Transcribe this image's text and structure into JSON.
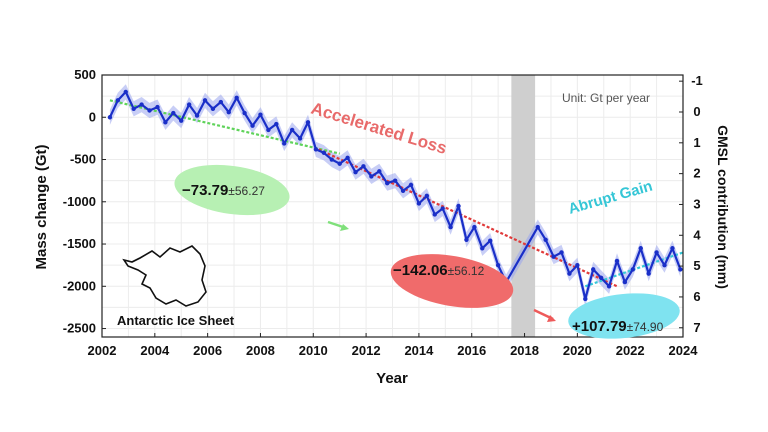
{
  "chart_data": {
    "type": "line",
    "xlabel": "Year",
    "ylabel": "Mass change (Gt)",
    "y2label": "GMSL contribution (mm)",
    "unit_note": "Unit: Gt per year",
    "xlim": [
      2002,
      2024
    ],
    "ylim": [
      -2600,
      500
    ],
    "y2lim": [
      -1.2,
      7.3
    ],
    "xticks": [
      "2002",
      "2004",
      "2006",
      "2008",
      "2010",
      "2012",
      "2014",
      "2016",
      "2018",
      "2020",
      "2022",
      "2024"
    ],
    "yticks": [
      "500",
      "0",
      "-500",
      "-1000",
      "-1500",
      "-2000",
      "-2500"
    ],
    "y2ticks": [
      "-1",
      "0",
      "1",
      "2",
      "3",
      "4",
      "5",
      "6",
      "7"
    ],
    "grid": true,
    "gap_period": [
      2017.5,
      2018.4
    ],
    "series": [
      {
        "x": [
          2002.3,
          2002.6,
          2002.9,
          2003.2,
          2003.5,
          2003.8,
          2004.1,
          2004.4,
          2004.7,
          2005.0,
          2005.3,
          2005.6,
          2005.9,
          2006.2,
          2006.5,
          2006.8,
          2007.1,
          2007.4,
          2007.7,
          2008.0,
          2008.3,
          2008.6,
          2008.9,
          2009.2,
          2009.5,
          2009.8,
          2010.1,
          2010.4,
          2010.7,
          2011.0,
          2011.3,
          2011.6,
          2011.9,
          2012.2,
          2012.5,
          2012.8,
          2013.1,
          2013.4,
          2013.7,
          2014.0,
          2014.3,
          2014.6,
          2014.9,
          2015.2,
          2015.5,
          2015.8,
          2016.1,
          2016.4,
          2016.7,
          2017.0,
          2017.3,
          2018.5,
          2018.8,
          2019.1,
          2019.4,
          2019.7,
          2020.0,
          2020.3,
          2020.6,
          2020.9,
          2021.2,
          2021.5,
          2021.8,
          2022.1,
          2022.4,
          2022.7,
          2023.0,
          2023.3,
          2023.6,
          2023.9
        ],
        "y": [
          0,
          200,
          300,
          100,
          150,
          80,
          120,
          -60,
          50,
          -40,
          150,
          20,
          200,
          100,
          180,
          60,
          230,
          50,
          -100,
          30,
          -150,
          -80,
          -310,
          -150,
          -250,
          -60,
          -380,
          -420,
          -500,
          -550,
          -480,
          -650,
          -580,
          -700,
          -640,
          -780,
          -750,
          -870,
          -800,
          -1020,
          -930,
          -1150,
          -1080,
          -1300,
          -1050,
          -1450,
          -1300,
          -1550,
          -1460,
          -1750,
          -1950,
          -1300,
          -1450,
          -1650,
          -1600,
          -1850,
          -1750,
          -2150,
          -1800,
          -1900,
          -2000,
          -1700,
          -1950,
          -1800,
          -1550,
          -1850,
          -1600,
          -1750,
          -1550,
          -1800
        ]
      }
    ],
    "trend_lines": [
      {
        "color": "#5fd35a",
        "x": [
          2002.3,
          2011.0
        ],
        "y": [
          200,
          -430
        ]
      },
      {
        "color": "#e03a3a",
        "x": [
          2010.2,
          2021.5
        ],
        "y": [
          -380,
          -2000
        ]
      },
      {
        "color": "#35c6d6",
        "x": [
          2020.3,
          2024.0
        ],
        "y": [
          -2000,
          -1600
        ]
      }
    ],
    "annotations": [
      {
        "text": "Accelerated Loss",
        "color": "#e86a6a"
      },
      {
        "text": "Abrupt Gain",
        "color": "#35c6d6"
      }
    ],
    "rate_labels": [
      {
        "value": "−73.79",
        "uncert": "±56.27",
        "bubble": "#b7f0b3"
      },
      {
        "value": "−142.06",
        "uncert": "±56.12",
        "bubble": "#f06b6b"
      },
      {
        "value": "+107.79",
        "uncert": "±74.90",
        "bubble": "#7fe3f0"
      }
    ],
    "inset_label": "Antarctic Ice Sheet",
    "line_color": "#1a2fc8",
    "band_color": "#9aa6ee"
  }
}
